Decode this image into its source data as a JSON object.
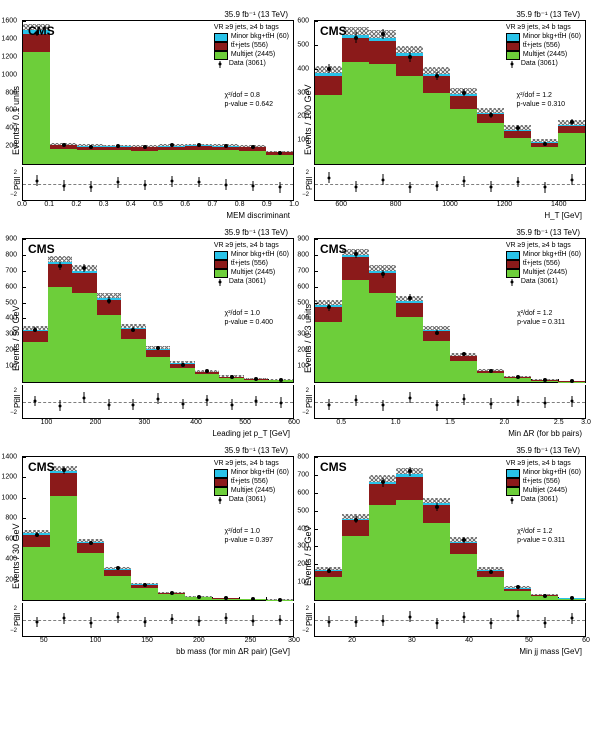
{
  "common": {
    "lumi_label": "35.9 fb⁻¹ (13 TeV)",
    "cms_label": "CMS",
    "region_label": "VR ≥9 jets, ≥4 b tags",
    "legend": {
      "minor": "Minor bkg+tt̄H (60)",
      "ttjets": "tt̄+jets (556)",
      "multijet": "Multijet (2445)",
      "data": "Data (3061)"
    },
    "pull_label": "Pull",
    "pull_ticks": [
      "2",
      "0",
      "−2"
    ],
    "colors": {
      "minor": "#29c2e8",
      "ttjets": "#8b1a1a",
      "multijet": "#6dce3a",
      "hatch": "#000000"
    }
  },
  "panels": [
    {
      "ylabel": "Events / 0.1 units",
      "xlabel": "MEM discriminant",
      "chi2": "χ²/dof = 0.8",
      "pvalue": "p-value = 0.642",
      "ymax": 1600,
      "yticks": [
        "200",
        "400",
        "600",
        "800",
        "1000",
        "1200",
        "1400",
        "1600"
      ],
      "xticks": [
        {
          "pos": 0,
          "label": "0.0"
        },
        {
          "pos": 0.1,
          "label": "0.1"
        },
        {
          "pos": 0.2,
          "label": "0.2"
        },
        {
          "pos": 0.3,
          "label": "0.3"
        },
        {
          "pos": 0.4,
          "label": "0.4"
        },
        {
          "pos": 0.5,
          "label": "0.5"
        },
        {
          "pos": 0.6,
          "label": "0.6"
        },
        {
          "pos": 0.7,
          "label": "0.7"
        },
        {
          "pos": 0.8,
          "label": "0.8"
        },
        {
          "pos": 0.9,
          "label": "0.9"
        },
        {
          "pos": 1.0,
          "label": "1.0"
        }
      ],
      "bins": [
        {
          "mj": 1250,
          "tt": 200,
          "mi": 50,
          "hatch": 70,
          "data": 1470,
          "err": 35,
          "pull": 0.6
        },
        {
          "mj": 170,
          "tt": 40,
          "mi": 8,
          "hatch": 20,
          "data": 210,
          "err": 14,
          "pull": -0.3
        },
        {
          "mj": 160,
          "tt": 35,
          "mi": 7,
          "hatch": 18,
          "data": 195,
          "err": 13,
          "pull": -0.5
        },
        {
          "mj": 155,
          "tt": 38,
          "mi": 7,
          "hatch": 18,
          "data": 205,
          "err": 13,
          "pull": 0.3
        },
        {
          "mj": 150,
          "tt": 36,
          "mi": 7,
          "hatch": 18,
          "data": 190,
          "err": 13,
          "pull": -0.2
        },
        {
          "mj": 155,
          "tt": 40,
          "mi": 7,
          "hatch": 18,
          "data": 210,
          "err": 13,
          "pull": 0.5
        },
        {
          "mj": 160,
          "tt": 42,
          "mi": 8,
          "hatch": 18,
          "data": 215,
          "err": 14,
          "pull": 0.4
        },
        {
          "mj": 155,
          "tt": 40,
          "mi": 7,
          "hatch": 18,
          "data": 200,
          "err": 13,
          "pull": -0.1
        },
        {
          "mj": 150,
          "tt": 35,
          "mi": 6,
          "hatch": 18,
          "data": 185,
          "err": 12,
          "pull": -0.4
        },
        {
          "mj": 100,
          "tt": 30,
          "mi": 5,
          "hatch": 15,
          "data": 125,
          "err": 11,
          "pull": -0.6
        }
      ]
    },
    {
      "ylabel": "Events / 100 GeV",
      "xlabel": "H_T [GeV]",
      "chi2": "χ²/dof = 1.2",
      "pvalue": "p-value = 0.310",
      "ymax": 600,
      "yticks": [
        "100",
        "200",
        "300",
        "400",
        "500",
        "600"
      ],
      "xticks": [
        {
          "pos": 0.1,
          "label": "600"
        },
        {
          "pos": 0.3,
          "label": "800"
        },
        {
          "pos": 0.5,
          "label": "1000"
        },
        {
          "pos": 0.7,
          "label": "1200"
        },
        {
          "pos": 0.9,
          "label": "1400"
        }
      ],
      "bins": [
        {
          "mj": 290,
          "tt": 80,
          "mi": 10,
          "hatch": 30,
          "data": 400,
          "err": 18,
          "pull": 1.2
        },
        {
          "mj": 430,
          "tt": 100,
          "mi": 12,
          "hatch": 35,
          "data": 530,
          "err": 22,
          "pull": -0.5
        },
        {
          "mj": 420,
          "tt": 95,
          "mi": 12,
          "hatch": 35,
          "data": 545,
          "err": 22,
          "pull": 0.8
        },
        {
          "mj": 370,
          "tt": 85,
          "mi": 10,
          "hatch": 32,
          "data": 450,
          "err": 20,
          "pull": -0.6
        },
        {
          "mj": 300,
          "tt": 70,
          "mi": 8,
          "hatch": 28,
          "data": 370,
          "err": 18,
          "pull": -0.4
        },
        {
          "mj": 230,
          "tt": 55,
          "mi": 7,
          "hatch": 25,
          "data": 300,
          "err": 16,
          "pull": 0.5
        },
        {
          "mj": 170,
          "tt": 40,
          "mi": 5,
          "hatch": 20,
          "data": 205,
          "err": 14,
          "pull": -0.5
        },
        {
          "mj": 110,
          "tt": 30,
          "mi": 4,
          "hatch": 18,
          "data": 150,
          "err": 12,
          "pull": 0.4
        },
        {
          "mj": 70,
          "tt": 20,
          "mi": 3,
          "hatch": 14,
          "data": 85,
          "err": 9,
          "pull": -0.6
        },
        {
          "mj": 130,
          "tt": 30,
          "mi": 4,
          "hatch": 20,
          "data": 175,
          "err": 12,
          "pull": 0.8
        }
      ]
    },
    {
      "ylabel": "Events / 50 GeV",
      "xlabel": "Leading jet p_T [GeV]",
      "chi2": "χ²/dof = 1.0",
      "pvalue": "p-value = 0.400",
      "ymax": 900,
      "yticks": [
        "100",
        "200",
        "300",
        "400",
        "500",
        "600",
        "700",
        "800",
        "900"
      ],
      "xticks": [
        {
          "pos": 0.0,
          "label": ""
        },
        {
          "pos": 0.09,
          "label": "100"
        },
        {
          "pos": 0.27,
          "label": "200"
        },
        {
          "pos": 0.45,
          "label": "300"
        },
        {
          "pos": 0.64,
          "label": "400"
        },
        {
          "pos": 0.82,
          "label": "500"
        },
        {
          "pos": 1.0,
          "label": "600"
        }
      ],
      "bins": [
        {
          "mj": 250,
          "tt": 70,
          "mi": 10,
          "hatch": 25,
          "data": 330,
          "err": 17,
          "pull": 0.2
        },
        {
          "mj": 600,
          "tt": 140,
          "mi": 15,
          "hatch": 40,
          "data": 730,
          "err": 26,
          "pull": -0.7
        },
        {
          "mj": 560,
          "tt": 125,
          "mi": 14,
          "hatch": 38,
          "data": 720,
          "err": 25,
          "pull": 0.8
        },
        {
          "mj": 420,
          "tt": 95,
          "mi": 11,
          "hatch": 32,
          "data": 510,
          "err": 22,
          "pull": -0.5
        },
        {
          "mj": 270,
          "tt": 65,
          "mi": 8,
          "hatch": 25,
          "data": 330,
          "err": 17,
          "pull": -0.5
        },
        {
          "mj": 160,
          "tt": 40,
          "mi": 5,
          "hatch": 20,
          "data": 215,
          "err": 14,
          "pull": 0.6
        },
        {
          "mj": 90,
          "tt": 24,
          "mi": 3,
          "hatch": 15,
          "data": 110,
          "err": 10,
          "pull": -0.4
        },
        {
          "mj": 50,
          "tt": 14,
          "mi": 2,
          "hatch": 12,
          "data": 70,
          "err": 8,
          "pull": 0.3
        },
        {
          "mj": 25,
          "tt": 8,
          "mi": 1,
          "hatch": 8,
          "data": 30,
          "err": 5,
          "pull": -0.5
        },
        {
          "mj": 15,
          "tt": 5,
          "mi": 1,
          "hatch": 6,
          "data": 22,
          "err": 4,
          "pull": 0.2
        },
        {
          "mj": 10,
          "tt": 4,
          "mi": 1,
          "hatch": 6,
          "data": 14,
          "err": 3,
          "pull": -0.1
        }
      ]
    },
    {
      "ylabel": "Events / 0.3 units",
      "xlabel": "Min ΔR (for bb pairs)",
      "chi2": "χ²/dof = 1.2",
      "pvalue": "p-value = 0.311",
      "ymax": 900,
      "yticks": [
        "100",
        "200",
        "300",
        "400",
        "500",
        "600",
        "700",
        "800",
        "900"
      ],
      "xticks": [
        {
          "pos": 0.0,
          "label": ""
        },
        {
          "pos": 0.1,
          "label": "0.5"
        },
        {
          "pos": 0.3,
          "label": "1.0"
        },
        {
          "pos": 0.5,
          "label": "1.5"
        },
        {
          "pos": 0.7,
          "label": "2.0"
        },
        {
          "pos": 0.9,
          "label": "2.5"
        },
        {
          "pos": 1.0,
          "label": "3.0"
        }
      ],
      "bins": [
        {
          "mj": 380,
          "tt": 95,
          "mi": 10,
          "hatch": 30,
          "data": 470,
          "err": 21,
          "pull": -0.5
        },
        {
          "mj": 640,
          "tt": 145,
          "mi": 15,
          "hatch": 40,
          "data": 805,
          "err": 27,
          "pull": 0.3
        },
        {
          "mj": 560,
          "tt": 125,
          "mi": 13,
          "hatch": 36,
          "data": 680,
          "err": 25,
          "pull": -0.6
        },
        {
          "mj": 410,
          "tt": 90,
          "mi": 10,
          "hatch": 30,
          "data": 530,
          "err": 22,
          "pull": 0.8
        },
        {
          "mj": 260,
          "tt": 60,
          "mi": 7,
          "hatch": 24,
          "data": 310,
          "err": 17,
          "pull": -0.6
        },
        {
          "mj": 130,
          "tt": 32,
          "mi": 4,
          "hatch": 18,
          "data": 175,
          "err": 12,
          "pull": 0.5
        },
        {
          "mj": 55,
          "tt": 15,
          "mi": 2,
          "hatch": 12,
          "data": 68,
          "err": 8,
          "pull": -0.3
        },
        {
          "mj": 25,
          "tt": 7,
          "mi": 1,
          "hatch": 8,
          "data": 34,
          "err": 5,
          "pull": 0.2
        },
        {
          "mj": 8,
          "tt": 3,
          "mi": 0,
          "hatch": 5,
          "data": 10,
          "err": 3,
          "pull": -0.1
        },
        {
          "mj": 3,
          "tt": 1,
          "mi": 0,
          "hatch": 3,
          "data": 5,
          "err": 2,
          "pull": 0.1
        }
      ]
    },
    {
      "ylabel": "Events / 30 GeV",
      "xlabel": "bb mass (for min ΔR pair) [GeV]",
      "chi2": "χ²/dof = 1.0",
      "pvalue": "p-value = 0.397",
      "ymax": 1400,
      "yticks": [
        "200",
        "400",
        "600",
        "800",
        "1000",
        "1200",
        "1400"
      ],
      "xticks": [
        {
          "pos": 0.08,
          "label": "50"
        },
        {
          "pos": 0.27,
          "label": "100"
        },
        {
          "pos": 0.46,
          "label": "150"
        },
        {
          "pos": 0.65,
          "label": "200"
        },
        {
          "pos": 0.84,
          "label": "250"
        },
        {
          "pos": 1.0,
          "label": "300"
        }
      ],
      "bins": [
        {
          "mj": 520,
          "tt": 120,
          "mi": 13,
          "hatch": 36,
          "data": 640,
          "err": 24,
          "pull": -0.4
        },
        {
          "mj": 1020,
          "tt": 220,
          "mi": 22,
          "hatch": 50,
          "data": 1270,
          "err": 34,
          "pull": 0.3
        },
        {
          "mj": 460,
          "tt": 100,
          "mi": 11,
          "hatch": 30,
          "data": 560,
          "err": 22,
          "pull": -0.5
        },
        {
          "mj": 240,
          "tt": 55,
          "mi": 6,
          "hatch": 22,
          "data": 310,
          "err": 17,
          "pull": 0.5
        },
        {
          "mj": 120,
          "tt": 30,
          "mi": 4,
          "hatch": 16,
          "data": 145,
          "err": 12,
          "pull": -0.4
        },
        {
          "mj": 55,
          "tt": 14,
          "mi": 2,
          "hatch": 12,
          "data": 72,
          "err": 8,
          "pull": 0.2
        },
        {
          "mj": 25,
          "tt": 7,
          "mi": 1,
          "hatch": 8,
          "data": 32,
          "err": 5,
          "pull": -0.2
        },
        {
          "mj": 12,
          "tt": 4,
          "mi": 1,
          "hatch": 6,
          "data": 18,
          "err": 4,
          "pull": 0.3
        },
        {
          "mj": 6,
          "tt": 2,
          "mi": 0,
          "hatch": 4,
          "data": 7,
          "err": 2,
          "pull": -0.1
        },
        {
          "mj": 4,
          "tt": 1,
          "mi": 0,
          "hatch": 3,
          "data": 5,
          "err": 2,
          "pull": 0.0
        }
      ]
    },
    {
      "ylabel": "Events / 5 GeV",
      "xlabel": "Min jj mass [GeV]",
      "chi2": "χ²/dof = 1.2",
      "pvalue": "p-value = 0.311",
      "ymax": 800,
      "yticks": [
        "100",
        "200",
        "300",
        "400",
        "500",
        "600",
        "700",
        "800"
      ],
      "xticks": [
        {
          "pos": 0.14,
          "label": "20"
        },
        {
          "pos": 0.36,
          "label": "30"
        },
        {
          "pos": 0.57,
          "label": "40"
        },
        {
          "pos": 0.79,
          "label": "50"
        },
        {
          "pos": 1.0,
          "label": "60"
        }
      ],
      "bins": [
        {
          "mj": 130,
          "tt": 35,
          "mi": 5,
          "hatch": 15,
          "data": 165,
          "err": 12,
          "pull": -0.3
        },
        {
          "mj": 360,
          "tt": 85,
          "mi": 10,
          "hatch": 28,
          "data": 450,
          "err": 20,
          "pull": -0.3
        },
        {
          "mj": 530,
          "tt": 120,
          "mi": 13,
          "hatch": 35,
          "data": 660,
          "err": 25,
          "pull": -0.1
        },
        {
          "mj": 560,
          "tt": 130,
          "mi": 14,
          "hatch": 36,
          "data": 720,
          "err": 26,
          "pull": 0.6
        },
        {
          "mj": 430,
          "tt": 100,
          "mi": 11,
          "hatch": 30,
          "data": 520,
          "err": 22,
          "pull": -0.6
        },
        {
          "mj": 260,
          "tt": 60,
          "mi": 7,
          "hatch": 24,
          "data": 335,
          "err": 17,
          "pull": 0.5
        },
        {
          "mj": 130,
          "tt": 32,
          "mi": 4,
          "hatch": 18,
          "data": 155,
          "err": 12,
          "pull": -0.6
        },
        {
          "mj": 50,
          "tt": 14,
          "mi": 2,
          "hatch": 12,
          "data": 75,
          "err": 8,
          "pull": 0.8
        },
        {
          "mj": 20,
          "tt": 6,
          "mi": 1,
          "hatch": 8,
          "data": 22,
          "err": 4,
          "pull": -0.5
        },
        {
          "mj": 6,
          "tt": 2,
          "mi": 1,
          "hatch": 5,
          "data": 10,
          "err": 3,
          "pull": 0.3
        }
      ]
    }
  ]
}
